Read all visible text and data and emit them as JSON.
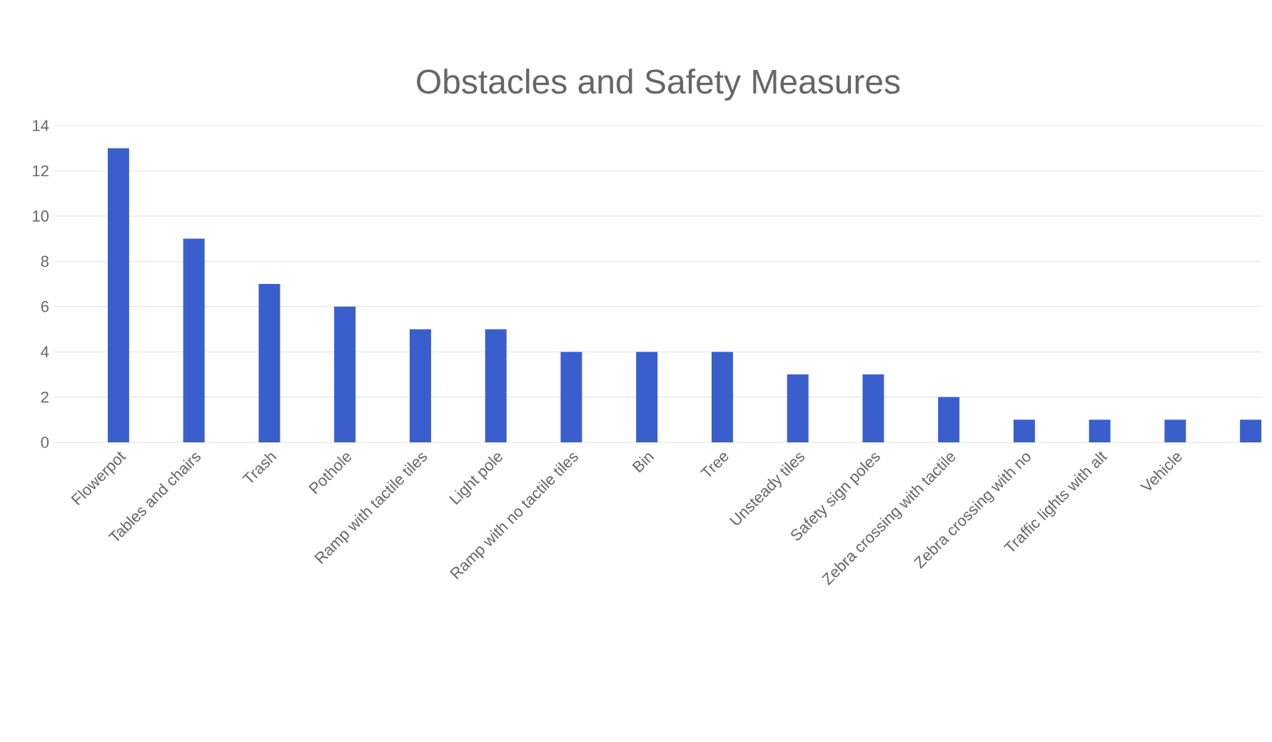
{
  "chart_data": {
    "type": "bar",
    "title": "Obstacles and Safety Measures",
    "categories": [
      "Flowerpot",
      "Tables and chairs",
      "Trash",
      "Pothole",
      "Ramp with tactile tiles",
      "Light pole",
      "Ramp with no tactile tiles",
      "Bin",
      "Tree",
      "Unsteady tiles",
      "Safety sign poles",
      "Zebra crossing with tactile",
      "Zebra crossing with no",
      "Traffic lights with alt",
      "Vehicle",
      null
    ],
    "values": [
      13,
      9,
      7,
      6,
      5,
      5,
      4,
      4,
      4,
      3,
      3,
      2,
      1,
      1,
      1,
      1
    ],
    "color": "#3a5fcd",
    "ylim": [
      0,
      14
    ],
    "yticks": [
      0,
      2,
      4,
      6,
      8,
      10,
      12,
      14
    ],
    "grid": "y"
  }
}
